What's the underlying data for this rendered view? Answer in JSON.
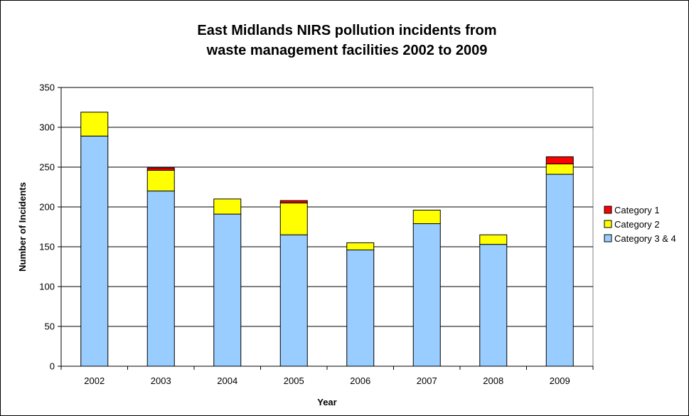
{
  "chart_data": {
    "type": "bar",
    "stacked": true,
    "title": [
      "East Midlands NIRS pollution incidents from",
      "waste management facilities 2002 to 2009"
    ],
    "xlabel": "Year",
    "ylabel": "Number of Incidents",
    "ylim": [
      0,
      350
    ],
    "yticks": [
      0,
      50,
      100,
      150,
      200,
      250,
      300,
      350
    ],
    "grid": true,
    "legend_position": "right",
    "categories": [
      "2002",
      "2003",
      "2004",
      "2005",
      "2006",
      "2007",
      "2008",
      "2009"
    ],
    "series": [
      {
        "name": "Category 3 & 4",
        "color": "#99ccff",
        "values": [
          289,
          220,
          191,
          165,
          146,
          179,
          153,
          241
        ]
      },
      {
        "name": "Category 2",
        "color": "#ffff00",
        "values": [
          30,
          26,
          19,
          40,
          9,
          17,
          12,
          13
        ]
      },
      {
        "name": "Category 1",
        "color": "#ff0000",
        "values": [
          0,
          3,
          0,
          3,
          0,
          0,
          0,
          9
        ]
      }
    ],
    "legend_order": [
      "Category 1",
      "Category 2",
      "Category 3 & 4"
    ]
  }
}
